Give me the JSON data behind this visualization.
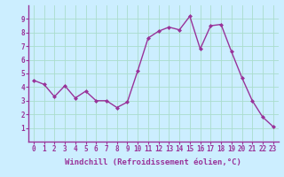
{
  "x": [
    0,
    1,
    2,
    3,
    4,
    5,
    6,
    7,
    8,
    9,
    10,
    11,
    12,
    13,
    14,
    15,
    16,
    17,
    18,
    19,
    20,
    21,
    22,
    23
  ],
  "y": [
    4.5,
    4.2,
    3.3,
    4.1,
    3.2,
    3.7,
    3.0,
    3.0,
    2.5,
    2.9,
    5.2,
    7.6,
    8.1,
    8.4,
    8.2,
    9.2,
    6.8,
    8.5,
    8.6,
    6.6,
    4.7,
    3.0,
    1.8,
    1.1
  ],
  "line_color": "#993399",
  "marker": "D",
  "marker_size": 2.0,
  "background_color": "#cceeff",
  "grid_color": "#aaddcc",
  "xlabel": "Windchill (Refroidissement éolien,°C)",
  "xlabel_color": "#993399",
  "tick_color": "#993399",
  "ylim": [
    0,
    10
  ],
  "xlim": [
    -0.5,
    23.5
  ],
  "yticks": [
    1,
    2,
    3,
    4,
    5,
    6,
    7,
    8,
    9
  ],
  "xticks": [
    0,
    1,
    2,
    3,
    4,
    5,
    6,
    7,
    8,
    9,
    10,
    11,
    12,
    13,
    14,
    15,
    16,
    17,
    18,
    19,
    20,
    21,
    22,
    23
  ],
  "xtick_labels": [
    "0",
    "1",
    "2",
    "3",
    "4",
    "5",
    "6",
    "7",
    "8",
    "9",
    "10",
    "11",
    "12",
    "13",
    "14",
    "15",
    "16",
    "17",
    "18",
    "19",
    "20",
    "21",
    "22",
    "23"
  ],
  "ytick_labels": [
    "1",
    "2",
    "3",
    "4",
    "5",
    "6",
    "7",
    "8",
    "9"
  ],
  "tick_fontsize": 5.5,
  "xlabel_fontsize": 6.5,
  "linewidth": 1.0,
  "border_color": "#993399",
  "border_linewidth": 1.0
}
